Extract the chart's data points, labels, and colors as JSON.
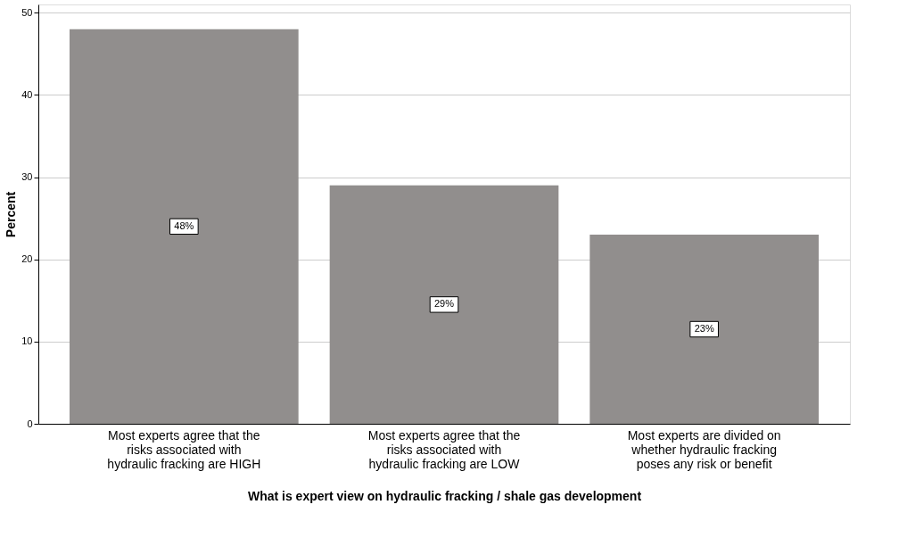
{
  "chart_data": {
    "type": "bar",
    "xlabel": "What is expert view on hydraulic fracking / shale gas development",
    "ylabel": "Percent",
    "categories": [
      "Most experts agree that the risks associated with hydraulic fracking are HIGH",
      "Most experts agree that the risks associated with hydraulic fracking are LOW",
      "Most experts are divided on whether hydraulic fracking poses any risk or benefit"
    ],
    "values": [
      48,
      29,
      23
    ],
    "value_labels": [
      "48%",
      "29%",
      "23%"
    ],
    "color": "#918e8d",
    "ylim": [
      0,
      51
    ],
    "yticks": [
      0,
      10,
      20,
      30,
      40,
      50
    ],
    "grid": "y"
  }
}
